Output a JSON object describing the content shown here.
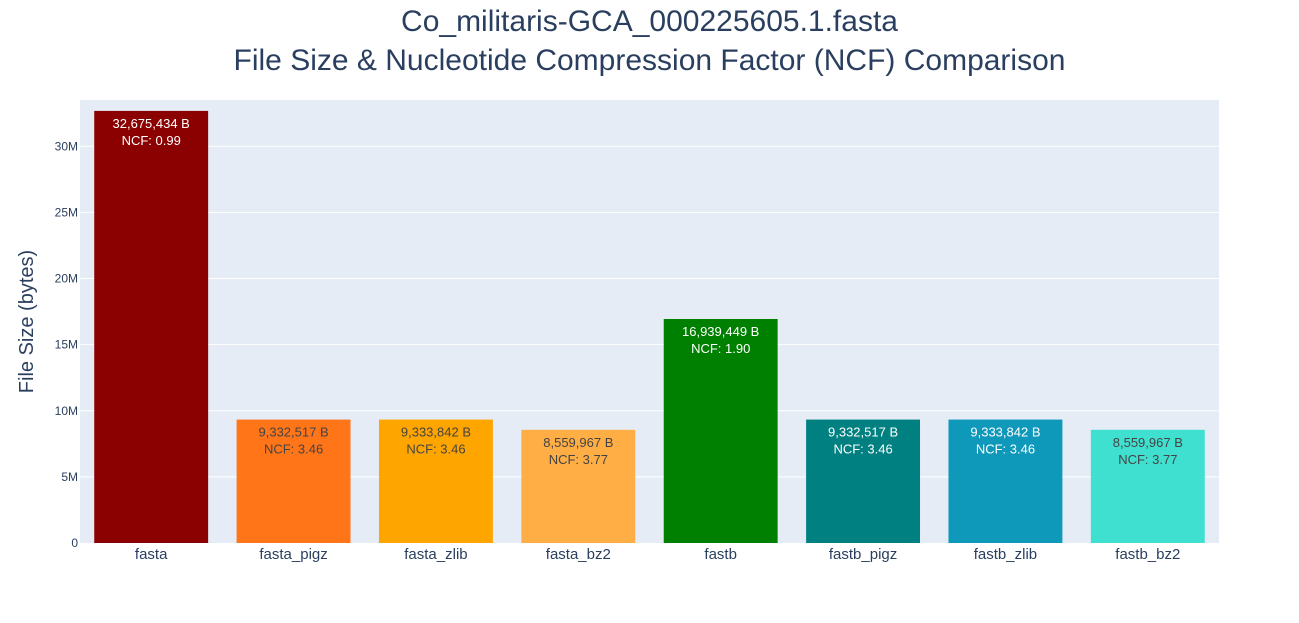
{
  "chart_data": {
    "type": "bar",
    "title": "Co_militaris-GCA_000225605.1.fasta",
    "subtitle": "File Size & Nucleotide Compression Factor (NCF) Comparison",
    "xlabel": "",
    "ylabel": "File Size (bytes)",
    "ylim": [
      0,
      33500000
    ],
    "yticks": [
      0,
      5000000,
      10000000,
      15000000,
      20000000,
      25000000,
      30000000
    ],
    "ytick_labels": [
      "0",
      "5M",
      "10M",
      "15M",
      "20M",
      "25M",
      "30M"
    ],
    "grid": true,
    "categories": [
      "fasta",
      "fasta_pigz",
      "fasta_zlib",
      "fasta_bz2",
      "fastb",
      "fastb_pigz",
      "fastb_zlib",
      "fastb_bz2"
    ],
    "values": [
      32675434,
      9332517,
      9333842,
      8559967,
      16939449,
      9332517,
      9333842,
      8559967
    ],
    "size_labels": [
      "32,675,434 B",
      "9,332,517 B",
      "9,333,842 B",
      "8,559,967 B",
      "16,939,449 B",
      "9,332,517 B",
      "9,333,842 B",
      "8,559,967 B"
    ],
    "ncf_labels": [
      "NCF: 0.99",
      "NCF: 3.46",
      "NCF: 3.46",
      "NCF: 3.77",
      "NCF: 1.90",
      "NCF: 3.46",
      "NCF: 3.46",
      "NCF: 3.77"
    ],
    "colors": [
      "#8b0000",
      "#ff7518",
      "#ffa500",
      "#ffad45",
      "#008000",
      "#008080",
      "#0e98ba",
      "#40e0d0"
    ],
    "label_colors": [
      "#ffffff",
      "#444444",
      "#444444",
      "#444444",
      "#ffffff",
      "#ffffff",
      "#ffffff",
      "#444444"
    ],
    "plot_bg": "#e5ecf6",
    "grid_color": "#ffffff",
    "text_color": "#2a3f5f"
  }
}
